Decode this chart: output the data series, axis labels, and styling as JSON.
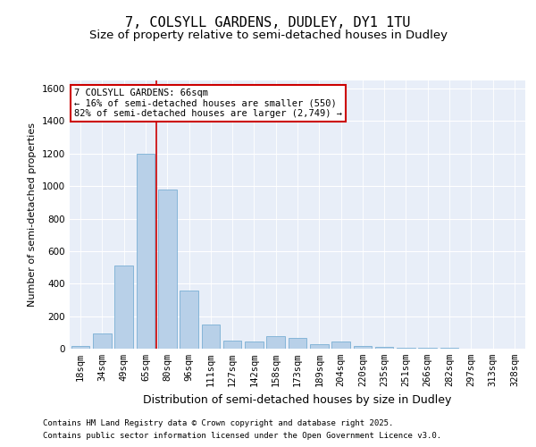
{
  "title1": "7, COLSYLL GARDENS, DUDLEY, DY1 1TU",
  "title2": "Size of property relative to semi-detached houses in Dudley",
  "xlabel": "Distribution of semi-detached houses by size in Dudley",
  "ylabel": "Number of semi-detached properties",
  "footnote1": "Contains HM Land Registry data © Crown copyright and database right 2025.",
  "footnote2": "Contains public sector information licensed under the Open Government Licence v3.0.",
  "bar_color": "#b8d0e8",
  "bar_edge_color": "#7aafd4",
  "annotation_box_color": "#cc0000",
  "vline_color": "#cc0000",
  "background_color": "#e8eef8",
  "annotation_text": "7 COLSYLL GARDENS: 66sqm\n← 16% of semi-detached houses are smaller (550)\n82% of semi-detached houses are larger (2,749) →",
  "categories": [
    "18sqm",
    "34sqm",
    "49sqm",
    "65sqm",
    "80sqm",
    "96sqm",
    "111sqm",
    "127sqm",
    "142sqm",
    "158sqm",
    "173sqm",
    "189sqm",
    "204sqm",
    "220sqm",
    "235sqm",
    "251sqm",
    "266sqm",
    "282sqm",
    "297sqm",
    "313sqm",
    "328sqm"
  ],
  "values": [
    18,
    95,
    510,
    1200,
    980,
    355,
    150,
    50,
    45,
    75,
    65,
    28,
    45,
    18,
    12,
    6,
    4,
    4,
    2,
    2,
    2
  ],
  "ylim": [
    0,
    1650
  ],
  "yticks": [
    0,
    200,
    400,
    600,
    800,
    1000,
    1200,
    1400,
    1600
  ],
  "vline_index": 3.5,
  "title1_fontsize": 11,
  "title2_fontsize": 9.5,
  "xlabel_fontsize": 9,
  "ylabel_fontsize": 8,
  "tick_fontsize": 7.5,
  "annot_fontsize": 7.5,
  "footnote_fontsize": 6.5
}
